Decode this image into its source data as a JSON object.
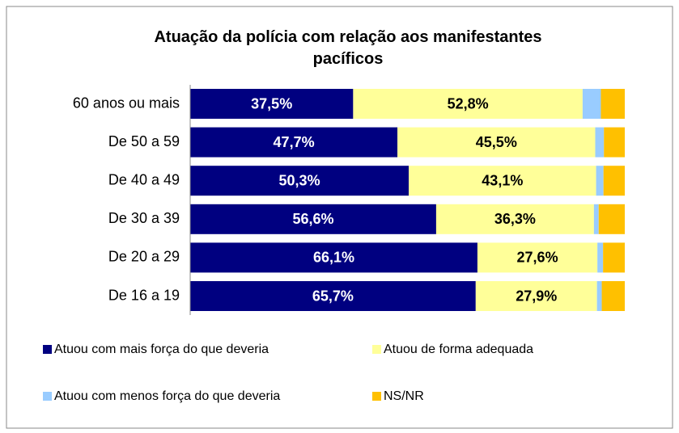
{
  "chart_data": {
    "type": "stacked-bar-horizontal",
    "title": "Atuação da polícia com relação aos manifestantes pacíficos",
    "categories": [
      "60 anos ou mais",
      "De 50 a 59",
      "De 40 a 49",
      "De 30 a 39",
      "De 20 a 29",
      "De 16 a 19"
    ],
    "xlim": [
      0,
      100
    ],
    "series": [
      {
        "name": "Atuou com mais força do que deveria",
        "color": "#000080",
        "values": [
          37.5,
          47.7,
          50.3,
          56.6,
          66.1,
          65.7
        ],
        "value_labels": [
          "37,5%",
          "47,7%",
          "50,3%",
          "56,6%",
          "66,1%",
          "65,7%"
        ]
      },
      {
        "name": "Atuou de forma adequada",
        "color": "#FFFF99",
        "values": [
          52.8,
          45.5,
          43.1,
          36.3,
          27.6,
          27.9
        ],
        "value_labels": [
          "52,8%",
          "45,5%",
          "43,1%",
          "36,3%",
          "27,6%",
          "27,9%"
        ]
      },
      {
        "name": "Atuou com menos força do que deveria",
        "color": "#99CCFF",
        "values": [
          4.2,
          2.0,
          1.7,
          1.1,
          1.3,
          1.1
        ]
      },
      {
        "name": "NS/NR",
        "color": "#FFC000",
        "values": [
          5.5,
          4.8,
          4.9,
          6.0,
          5.0,
          5.3
        ]
      }
    ]
  }
}
